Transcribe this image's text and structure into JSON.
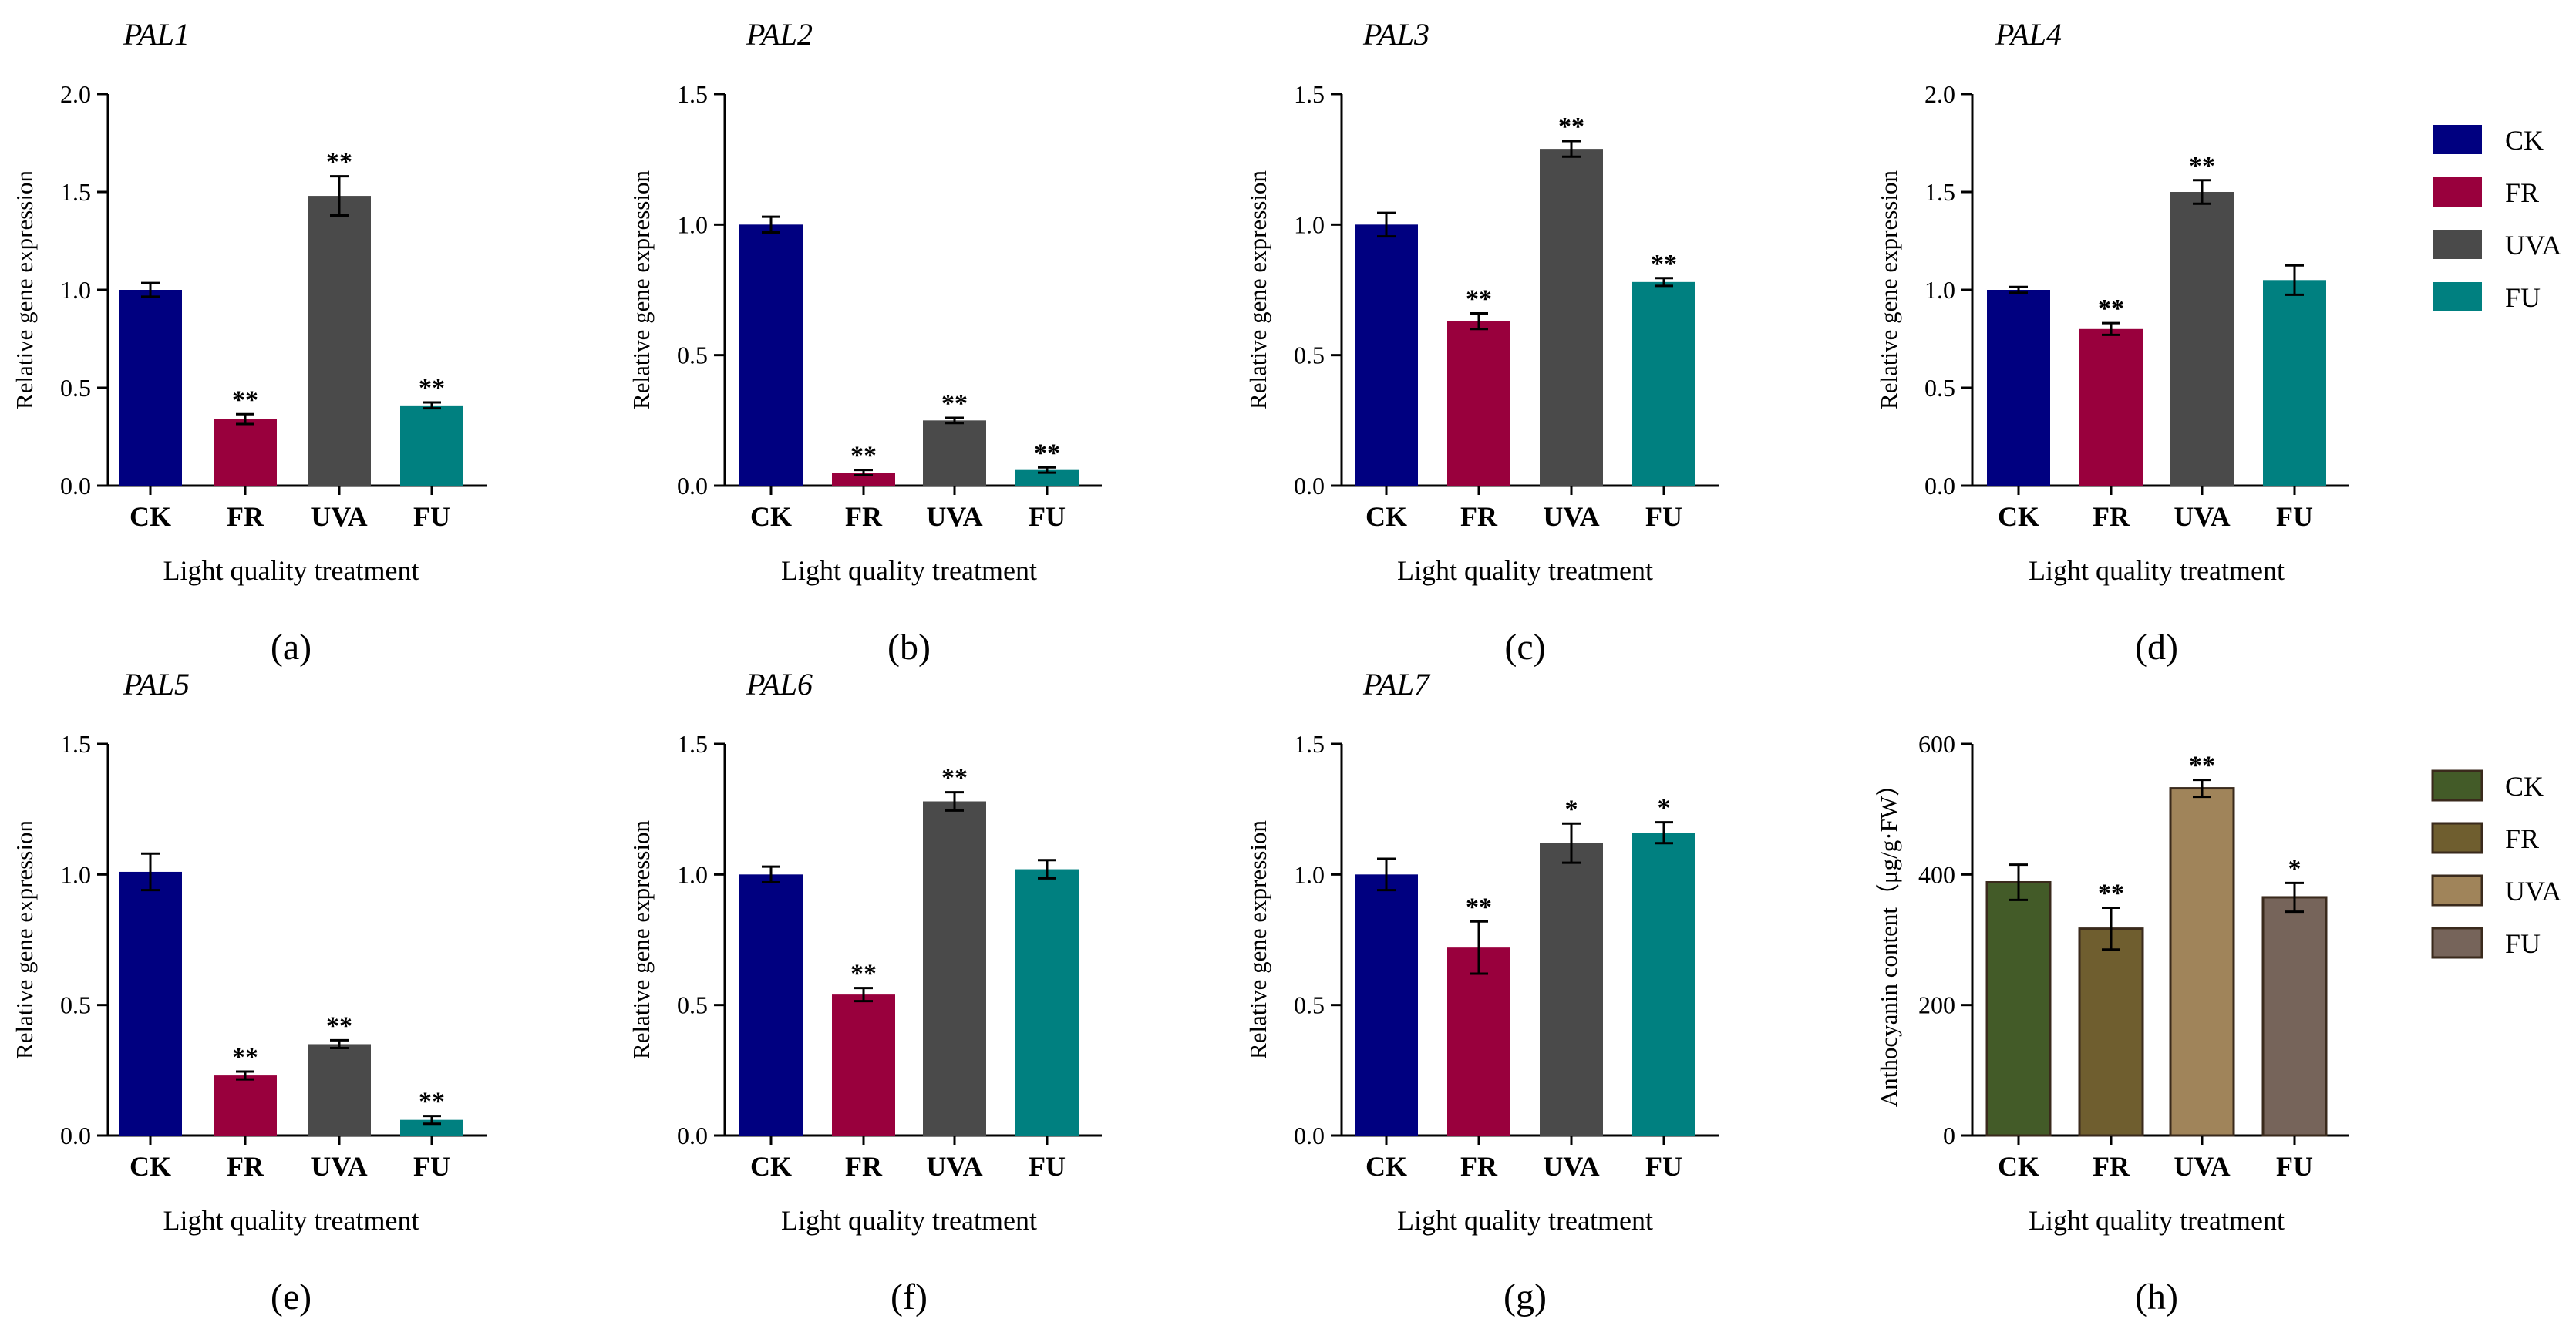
{
  "chart_data": [
    {
      "type": "bar",
      "panel": "(a)",
      "title": "PAL1",
      "xlabel": "Light quality treatment",
      "ylabel": "Relative gene expression",
      "categories": [
        "CK",
        "FR",
        "UVA",
        "FU"
      ],
      "values": [
        1.0,
        0.34,
        1.48,
        0.41
      ],
      "errors": [
        0.035,
        0.025,
        0.1,
        0.015
      ],
      "significance": [
        "",
        "**",
        "**",
        "**"
      ],
      "ylim": [
        0,
        2.0
      ],
      "yticks": [
        "0.0",
        "0.5",
        "1.0",
        "1.5",
        "2.0"
      ],
      "colors": [
        "#000080",
        "#99003d",
        "#4a4a4a",
        "#008080"
      ]
    },
    {
      "type": "bar",
      "panel": "(b)",
      "title": "PAL2",
      "xlabel": "Light quality treatment",
      "ylabel": "Relative gene expression",
      "categories": [
        "CK",
        "FR",
        "UVA",
        "FU"
      ],
      "values": [
        1.0,
        0.05,
        0.25,
        0.06
      ],
      "errors": [
        0.03,
        0.01,
        0.01,
        0.01
      ],
      "significance": [
        "",
        "**",
        "**",
        "**"
      ],
      "ylim": [
        0,
        1.5
      ],
      "yticks": [
        "0.0",
        "0.5",
        "1.0",
        "1.5"
      ],
      "colors": [
        "#000080",
        "#99003d",
        "#4a4a4a",
        "#008080"
      ]
    },
    {
      "type": "bar",
      "panel": "(c)",
      "title": "PAL3",
      "xlabel": "Light quality treatment",
      "ylabel": "Relative gene expression",
      "categories": [
        "CK",
        "FR",
        "UVA",
        "FU"
      ],
      "values": [
        1.0,
        0.63,
        1.29,
        0.78
      ],
      "errors": [
        0.045,
        0.03,
        0.03,
        0.015
      ],
      "significance": [
        "",
        "**",
        "**",
        "**"
      ],
      "ylim": [
        0,
        1.5
      ],
      "yticks": [
        "0.0",
        "0.5",
        "1.0",
        "1.5"
      ],
      "colors": [
        "#000080",
        "#99003d",
        "#4a4a4a",
        "#008080"
      ]
    },
    {
      "type": "bar",
      "panel": "(d)",
      "title": "PAL4",
      "xlabel": "Light quality treatment",
      "ylabel": "Relative gene expression",
      "categories": [
        "CK",
        "FR",
        "UVA",
        "FU"
      ],
      "values": [
        1.0,
        0.8,
        1.5,
        1.05
      ],
      "errors": [
        0.015,
        0.03,
        0.06,
        0.075
      ],
      "significance": [
        "",
        "**",
        "**",
        ""
      ],
      "ylim": [
        0,
        2.0
      ],
      "yticks": [
        "0.0",
        "0.5",
        "1.0",
        "1.5",
        "2.0"
      ],
      "colors": [
        "#000080",
        "#99003d",
        "#4a4a4a",
        "#008080"
      ]
    },
    {
      "type": "bar",
      "panel": "(e)",
      "title": "PAL5",
      "xlabel": "Light quality treatment",
      "ylabel": "Relative gene expression",
      "categories": [
        "CK",
        "FR",
        "UVA",
        "FU"
      ],
      "values": [
        1.01,
        0.23,
        0.35,
        0.06
      ],
      "errors": [
        0.07,
        0.015,
        0.015,
        0.015
      ],
      "significance": [
        "",
        "**",
        "**",
        "**"
      ],
      "ylim": [
        0,
        1.5
      ],
      "yticks": [
        "0.0",
        "0.5",
        "1.0",
        "1.5"
      ],
      "colors": [
        "#000080",
        "#99003d",
        "#4a4a4a",
        "#008080"
      ]
    },
    {
      "type": "bar",
      "panel": "(f)",
      "title": "PAL6",
      "xlabel": "Light quality treatment",
      "ylabel": "Relative gene expression",
      "categories": [
        "CK",
        "FR",
        "UVA",
        "FU"
      ],
      "values": [
        1.0,
        0.54,
        1.28,
        1.02
      ],
      "errors": [
        0.03,
        0.025,
        0.035,
        0.035
      ],
      "significance": [
        "",
        "**",
        "**",
        ""
      ],
      "ylim": [
        0,
        1.5
      ],
      "yticks": [
        "0.0",
        "0.5",
        "1.0",
        "1.5"
      ],
      "colors": [
        "#000080",
        "#99003d",
        "#4a4a4a",
        "#008080"
      ]
    },
    {
      "type": "bar",
      "panel": "(g)",
      "title": "PAL7",
      "xlabel": "Light quality treatment",
      "ylabel": "Relative gene expression",
      "categories": [
        "CK",
        "FR",
        "UVA",
        "FU"
      ],
      "values": [
        1.0,
        0.72,
        1.12,
        1.16
      ],
      "errors": [
        0.06,
        0.1,
        0.075,
        0.04
      ],
      "significance": [
        "",
        "**",
        "*",
        "*"
      ],
      "ylim": [
        0,
        1.5
      ],
      "yticks": [
        "0.0",
        "0.5",
        "1.0",
        "1.5"
      ],
      "colors": [
        "#000080",
        "#99003d",
        "#4a4a4a",
        "#008080"
      ]
    },
    {
      "type": "bar",
      "panel": "(h)",
      "title": "",
      "xlabel": "Light quality treatment",
      "ylabel": "Anthocyanin content（μg/g·FW）",
      "categories": [
        "CK",
        "FR",
        "UVA",
        "FU"
      ],
      "values": [
        388,
        317,
        532,
        365
      ],
      "errors": [
        27,
        32,
        13,
        22
      ],
      "significance": [
        "",
        "**",
        "**",
        "*"
      ],
      "ylim": [
        0,
        600
      ],
      "yticks": [
        "0",
        "200",
        "400",
        "600"
      ],
      "colors": [
        "#435b28",
        "#6f5e2f",
        "#a0845a",
        "#76645a"
      ],
      "outline": "#3a2a1c"
    }
  ],
  "legends": [
    {
      "entries": [
        "CK",
        "FR",
        "UVA",
        "FU"
      ],
      "colors": [
        "#000080",
        "#99003d",
        "#4a4a4a",
        "#008080"
      ],
      "placement": "right of top row"
    },
    {
      "entries": [
        "CK",
        "FR",
        "UVA",
        "FU"
      ],
      "colors": [
        "#435b28",
        "#6f5e2f",
        "#a0845a",
        "#76645a"
      ],
      "outline": "#3a2a1c",
      "placement": "right of bottom row"
    }
  ]
}
